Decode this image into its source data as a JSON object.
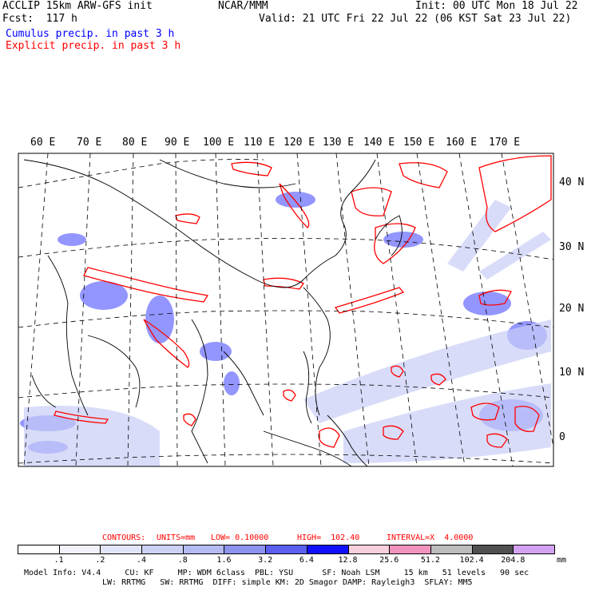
{
  "header": {
    "title": "ACCLIP 15km ARW-GFS init",
    "fcst": "Fcst:  117 h",
    "center": "NCAR/MMM",
    "init": "Init: 00 UTC Mon 18 Jul 22",
    "valid": "Valid: 21 UTC Fri 22 Jul 22 (06 KST Sat 23 Jul 22)",
    "cumulus_label": "Cumulus precip. in past 3 h",
    "explicit_label": "Explicit precip. in past 3 h"
  },
  "colors": {
    "cumulus": "#0000ff",
    "explicit": "#ff0000",
    "coast": "#000000"
  },
  "map": {
    "lon_labels": [
      "60 E",
      "70 E",
      "80 E",
      "90 E",
      "100 E",
      "110 E",
      "120 E",
      "130 E",
      "140 E",
      "150 E",
      "160 E",
      "170 E"
    ],
    "lat_labels": [
      "40 N",
      "30 N",
      "20 N",
      "10 N",
      "0"
    ]
  },
  "contours": {
    "prefix": "CONTOURS:",
    "units": "UNITS=mm",
    "low": "LOW= 0.10000",
    "high": "HIGH=  102.40",
    "interval": "INTERVAL=X  4.0000"
  },
  "legend": {
    "labels": [
      ".1",
      ".2",
      ".4",
      ".8",
      "1.6",
      "3.2",
      "6.4",
      "12.8",
      "25.6",
      "51.2",
      "102.4",
      "204.8"
    ],
    "unit": "mm",
    "colors": [
      "#ffffff",
      "#f2f2fb",
      "#e2e4f8",
      "#cdd2f5",
      "#b4baf2",
      "#8c92ee",
      "#5a5ff0",
      "#1010ff",
      "#f6d0dc",
      "#f293bd",
      "#bcbcbc",
      "#505050",
      "#d4a2f2"
    ]
  },
  "footer": {
    "line1": "Model Info: V4.4     CU: KF     MP: WDM 6class  PBL: YSU      SF: Noah LSM     15 km   51 levels   90 sec",
    "line2": "LW: RRTMG   SW: RRTMG  DIFF: simple KM: 2D Smagor DAMP: Rayleigh3  SFLAY: MM5"
  }
}
